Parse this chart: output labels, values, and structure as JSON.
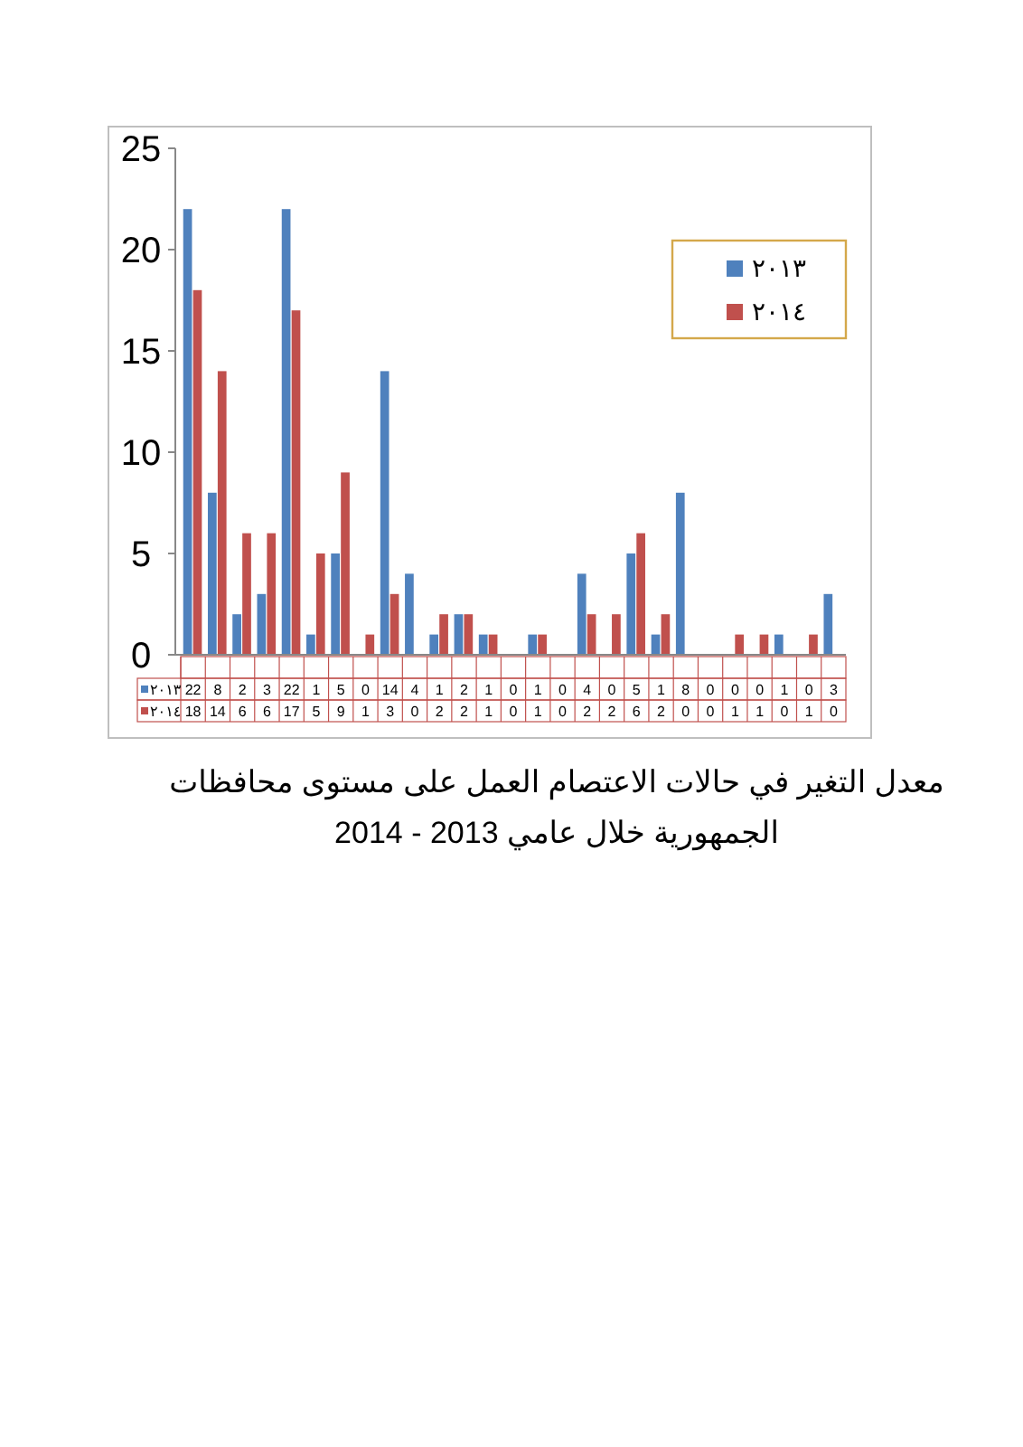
{
  "chart_data": {
    "type": "bar",
    "title": "معدل التغير في حالات الاعتصام العمل على مستوى محافظات\nالجمهورية خلال عامي 2013 -  2014",
    "categories": [
      null,
      null,
      null,
      null,
      null,
      null,
      null,
      null,
      null,
      null,
      null,
      null,
      null,
      null,
      null,
      null,
      null,
      null,
      null,
      null,
      null,
      null,
      null,
      null,
      null,
      null,
      null
    ],
    "series": [
      {
        "name": "٢٠١٣",
        "color": "#4f81bd",
        "values": [
          22,
          8,
          2,
          3,
          22,
          1,
          5,
          0,
          14,
          4,
          1,
          2,
          1,
          0,
          1,
          0,
          4,
          0,
          5,
          1,
          8,
          0,
          0,
          0,
          1,
          0,
          3
        ]
      },
      {
        "name": "٢٠١٤",
        "color": "#c0504d",
        "values": [
          18,
          14,
          6,
          6,
          17,
          5,
          9,
          1,
          3,
          0,
          2,
          2,
          1,
          0,
          1,
          0,
          2,
          2,
          6,
          2,
          0,
          0,
          1,
          1,
          0,
          1,
          0
        ]
      }
    ],
    "ylim": [
      0,
      25
    ],
    "yticks": [
      0,
      5,
      10,
      15,
      20,
      25
    ],
    "data_labels": true,
    "legend": "top right",
    "grid": false
  }
}
